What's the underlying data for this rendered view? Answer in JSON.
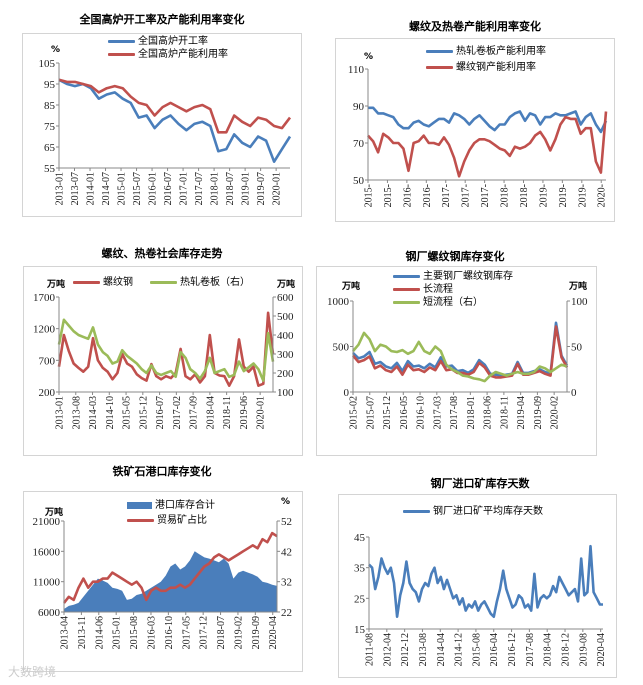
{
  "colors": {
    "blue": "#4a7ebb",
    "red": "#c0504d",
    "green": "#9bbb59",
    "axis": "#888888"
  },
  "watermark": "大数跨境",
  "chart_data": [
    {
      "type": "line",
      "title": "全国高炉开工率及产能利用率变化",
      "left_unit": "%",
      "x_ticks": [
        "2013-01",
        "2013-07",
        "2014-01",
        "2014-07",
        "2015-01",
        "2015-07",
        "2016-01",
        "2016-07",
        "2017-01",
        "2017-07",
        "2018-01",
        "2018-07",
        "2019-01",
        "2019-07",
        "2020-01"
      ],
      "y_left": {
        "min": 55,
        "max": 105,
        "ticks": [
          55,
          65,
          75,
          85,
          95,
          105
        ]
      },
      "series": [
        {
          "name": "全国高炉开工率",
          "color": "#4a7ebb",
          "axis": "left",
          "values": [
            97,
            95,
            94,
            95,
            93,
            88,
            90,
            91,
            88,
            86,
            79,
            80,
            74,
            78,
            80,
            76,
            73,
            76,
            77,
            75,
            63,
            64,
            71,
            67,
            65,
            70,
            68,
            58,
            64,
            70
          ]
        },
        {
          "name": "全国高炉产能利用率",
          "color": "#c0504d",
          "axis": "left",
          "values": [
            97,
            96,
            96,
            95,
            94,
            91,
            93,
            94,
            93,
            89,
            86,
            85,
            80,
            84,
            86,
            84,
            82,
            84,
            85,
            83,
            72,
            72,
            80,
            77,
            75,
            79,
            78,
            75,
            74,
            79
          ]
        }
      ]
    },
    {
      "type": "line",
      "title": "螺纹及热卷产能利用率变化",
      "left_unit": "%",
      "x_ticks": [
        "2015-",
        "2015-",
        "2016-",
        "2016-",
        "2017-",
        "2017-",
        "2017-",
        "2018-",
        "2018-",
        "2019-",
        "2019-",
        "2019-",
        "2020-"
      ],
      "y_left": {
        "min": 50,
        "max": 110,
        "ticks": [
          50,
          70,
          90,
          110
        ]
      },
      "series": [
        {
          "name": "热轧卷板产能利用率",
          "color": "#4a7ebb",
          "axis": "left",
          "values": [
            89,
            89,
            86,
            86,
            85,
            84,
            80,
            78,
            78,
            81,
            82,
            80,
            79,
            81,
            83,
            83,
            81,
            86,
            85,
            83,
            80,
            83,
            85,
            82,
            79,
            77,
            80,
            80,
            84,
            86,
            87,
            82,
            86,
            85,
            80,
            84,
            84,
            86,
            85,
            85,
            86,
            87,
            80,
            84,
            86,
            80,
            76,
            82
          ]
        },
        {
          "name": "螺纹钢产能利用率",
          "color": "#c0504d",
          "axis": "left",
          "values": [
            74,
            71,
            65,
            75,
            73,
            70,
            70,
            67,
            55,
            70,
            71,
            74,
            70,
            70,
            69,
            73,
            69,
            62,
            52,
            60,
            66,
            70,
            72,
            72,
            71,
            69,
            67,
            66,
            63,
            68,
            67,
            68,
            70,
            74,
            76,
            72,
            66,
            72,
            80,
            84,
            83,
            83,
            75,
            78,
            78,
            60,
            54,
            87
          ]
        }
      ]
    },
    {
      "type": "line",
      "title": "螺纹、热卷社会库存走势",
      "left_unit": "万吨",
      "right_unit": "万吨",
      "x_ticks": [
        "2013-01",
        "2013-08",
        "2014-03",
        "2014-10",
        "2015-05",
        "2015-12",
        "2016-07",
        "2017-02",
        "2017-09",
        "2018-04",
        "2018-11",
        "2019-06",
        "2020-01"
      ],
      "y_left": {
        "min": 200,
        "max": 1700,
        "ticks": [
          200,
          700,
          1200,
          1700
        ]
      },
      "y_right": {
        "min": 100,
        "max": 600,
        "ticks": [
          100,
          200,
          300,
          400,
          500,
          600
        ]
      },
      "series": [
        {
          "name": "螺纹钢",
          "color": "#c0504d",
          "axis": "left",
          "values": [
            600,
            1100,
            850,
            650,
            580,
            520,
            600,
            1050,
            700,
            580,
            520,
            400,
            500,
            800,
            650,
            600,
            480,
            420,
            380,
            640,
            450,
            400,
            450,
            420,
            500,
            880,
            450,
            400,
            480,
            350,
            450,
            1100,
            500,
            460,
            450,
            300,
            450,
            1030,
            600,
            520,
            600,
            300,
            330,
            1450,
            800
          ]
        },
        {
          "name": "热轧卷板（右）",
          "color": "#9bbb59",
          "axis": "right",
          "values": [
            350,
            480,
            450,
            420,
            400,
            390,
            380,
            440,
            350,
            310,
            290,
            250,
            260,
            320,
            290,
            270,
            250,
            220,
            200,
            240,
            200,
            190,
            200,
            210,
            180,
            310,
            280,
            220,
            200,
            170,
            210,
            280,
            200,
            210,
            220,
            180,
            190,
            260,
            210,
            230,
            250,
            220,
            160,
            410,
            260
          ]
        }
      ]
    },
    {
      "type": "line",
      "title": "钢厂螺纹钢库存变化",
      "left_unit": "万吨",
      "right_unit": "万吨",
      "x_ticks": [
        "2015-02",
        "2015-07",
        "2015-12",
        "2016-05",
        "2016-10",
        "2017-03",
        "2017-08",
        "2018-01",
        "2018-06",
        "2018-11",
        "2019-04",
        "2019-09",
        "2020-02"
      ],
      "y_left": {
        "min": 0,
        "max": 1000,
        "ticks": [
          0,
          500,
          1000
        ]
      },
      "y_right": {
        "min": 0,
        "max": 100,
        "ticks": [
          0,
          50,
          100
        ]
      },
      "series": [
        {
          "name": "主要钢厂螺纹钢库存",
          "color": "#4a7ebb",
          "axis": "left",
          "values": [
            430,
            370,
            390,
            440,
            310,
            330,
            280,
            260,
            320,
            230,
            340,
            280,
            290,
            260,
            310,
            270,
            380,
            280,
            290,
            230,
            240,
            210,
            250,
            350,
            300,
            200,
            190,
            180,
            190,
            200,
            330,
            210,
            210,
            230,
            250,
            220,
            200,
            760,
            400,
            290
          ]
        },
        {
          "name": "长流程",
          "color": "#c0504d",
          "axis": "left",
          "values": [
            400,
            330,
            350,
            390,
            260,
            290,
            240,
            220,
            280,
            190,
            300,
            240,
            250,
            220,
            270,
            240,
            340,
            240,
            250,
            210,
            210,
            190,
            220,
            320,
            270,
            180,
            160,
            160,
            170,
            180,
            310,
            190,
            190,
            210,
            230,
            200,
            180,
            720,
            380,
            270
          ]
        },
        {
          "name": "短流程（右）",
          "color": "#9bbb59",
          "axis": "right",
          "values": [
            45,
            52,
            65,
            58,
            45,
            52,
            50,
            45,
            44,
            46,
            42,
            45,
            55,
            45,
            42,
            50,
            45,
            30,
            25,
            22,
            18,
            17,
            15,
            14,
            12,
            18,
            22,
            20,
            18,
            20,
            22,
            20,
            20,
            22,
            28,
            26,
            22,
            26,
            30,
            28
          ]
        }
      ]
    },
    {
      "type": "area",
      "title": "铁矿石港口库存变化",
      "left_unit": "万吨",
      "right_unit": "%",
      "x_ticks": [
        "2013-04",
        "2013-11",
        "2014-06",
        "2015-01",
        "2015-08",
        "2016-03",
        "2016-10",
        "2017-05",
        "2017-12",
        "2018-07",
        "2019-02",
        "2019-09",
        "2020-04"
      ],
      "y_left": {
        "min": 6000,
        "max": 21000,
        "ticks": [
          6000,
          11000,
          16000,
          21000
        ]
      },
      "y_right": {
        "min": 22,
        "max": 52,
        "ticks": [
          22,
          32,
          42,
          52
        ]
      },
      "series": [
        {
          "name": "港口库存合计",
          "color": "#4a7ebb",
          "axis": "left",
          "kind": "area",
          "values": [
            6500,
            7000,
            7200,
            7500,
            8500,
            9500,
            10500,
            11500,
            11200,
            10800,
            10000,
            9800,
            9500,
            8000,
            8200,
            8800,
            9000,
            9500,
            10000,
            10500,
            11000,
            12000,
            13500,
            14000,
            13000,
            13500,
            14500,
            16000,
            15500,
            15000,
            14800,
            14500,
            14200,
            14800,
            14000,
            11500,
            12500,
            12800,
            12500,
            12200,
            11800,
            11000,
            10800,
            10500,
            10300
          ]
        },
        {
          "name": "贸易矿占比",
          "color": "#c0504d",
          "axis": "right",
          "values": [
            25,
            27,
            26,
            30,
            33,
            30,
            32,
            32,
            33,
            33,
            35,
            34,
            33,
            32,
            31,
            32,
            30,
            26,
            29,
            30,
            29,
            29,
            30,
            30,
            31,
            30,
            31,
            33,
            35,
            37,
            38,
            40,
            41,
            40,
            39,
            40,
            41,
            42,
            43,
            44,
            43,
            46,
            45,
            48,
            47
          ]
        }
      ]
    },
    {
      "type": "line",
      "title": "钢厂进口矿库存天数",
      "x_ticks": [
        "2011-08",
        "2012-04",
        "2012-12",
        "2013-08",
        "2014-04",
        "2014-12",
        "2015-08",
        "2016-04",
        "2016-12",
        "2017-08",
        "2018-04",
        "2018-12",
        "2019-08",
        "2020-04"
      ],
      "y_left": {
        "min": 15,
        "max": 45,
        "ticks": [
          15,
          25,
          35,
          45
        ]
      },
      "series": [
        {
          "name": "钢厂进口矿平均库存天数",
          "color": "#4a7ebb",
          "axis": "left",
          "values": [
            36,
            35,
            28,
            32,
            38,
            35,
            33,
            35,
            30,
            19,
            26,
            30,
            37,
            30,
            28,
            27,
            24,
            28,
            30,
            29,
            33,
            35,
            30,
            32,
            28,
            31,
            28,
            25,
            26,
            23,
            25,
            21,
            23,
            22,
            24,
            21,
            23,
            24,
            22,
            20,
            19,
            24,
            28,
            34,
            28,
            25,
            22,
            23,
            26,
            25,
            22,
            23,
            21,
            33,
            22,
            25,
            26,
            25,
            26,
            29,
            27,
            32,
            30,
            28,
            26,
            27,
            28,
            24,
            38,
            26,
            27,
            42,
            27,
            25,
            23,
            23
          ]
        }
      ]
    }
  ]
}
